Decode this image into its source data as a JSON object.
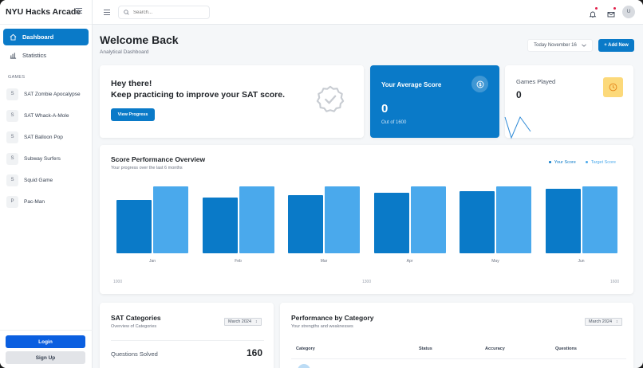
{
  "app": {
    "title": "NYU Hacks Arcade"
  },
  "sidebar": {
    "nav": [
      {
        "label": "Dashboard",
        "icon": "home-icon",
        "active": true
      },
      {
        "label": "Statistics",
        "icon": "bar-chart-icon",
        "active": false
      }
    ],
    "games_heading": "GAMES",
    "games": [
      {
        "initial": "S",
        "label": "SAT Zombie Apocalypse"
      },
      {
        "initial": "S",
        "label": "SAT Whack-A-Mole"
      },
      {
        "initial": "S",
        "label": "SAT Balloon Pop"
      },
      {
        "initial": "S",
        "label": "Subway Surfers"
      },
      {
        "initial": "S",
        "label": "Squid Game"
      },
      {
        "initial": "P",
        "label": "Pac-Man"
      }
    ],
    "login_label": "Login",
    "signup_label": "Sign Up"
  },
  "topbar": {
    "search_placeholder": "Search...",
    "avatar_initial": "U",
    "icons": [
      "bell-icon",
      "mail-icon"
    ]
  },
  "header": {
    "title": "Welcome Back",
    "subtitle": "Analytical Dashboard",
    "date_label": "Today November 16",
    "add_label": "+ Add New"
  },
  "hero": {
    "line1": "Hey there!",
    "line2": "Keep practicing to improve your SAT score.",
    "button": "View Progress"
  },
  "avg_score": {
    "title": "Your Average Score",
    "value": "0",
    "sub": "Out of 1600"
  },
  "games_played": {
    "title": "Games Played",
    "value": "0"
  },
  "performance": {
    "title": "Score Performance Overview",
    "subtitle": "Your progress over the last 6 months",
    "legend": [
      "Your Score",
      "Target Score"
    ],
    "months": [
      "Jan",
      "Feb",
      "Mar",
      "Apr",
      "May",
      "Jun"
    ],
    "axis": [
      "1000",
      "1300",
      "1600"
    ]
  },
  "chart_data": {
    "type": "bar",
    "title": "Score Performance Overview",
    "subtitle": "Your progress over the last 6 months",
    "categories": [
      "Jan",
      "Feb",
      "Mar",
      "Apr",
      "May",
      "Jun"
    ],
    "series": [
      {
        "name": "Your Score",
        "color": "#0a7ac8",
        "values": [
          1280,
          1330,
          1390,
          1450,
          1490,
          1540
        ]
      },
      {
        "name": "Target Score",
        "color": "#4aa9ec",
        "values": [
          1600,
          1600,
          1600,
          1600,
          1600,
          1600
        ]
      }
    ],
    "axis_tick_labels": [
      "1000",
      "1300",
      "1600"
    ],
    "legend_position": "top-right",
    "grid": false
  },
  "categories_card": {
    "title": "SAT Categories",
    "subtitle": "Overview of Categories",
    "select": "March 2024",
    "questions_label": "Questions Solved",
    "questions_value": "160"
  },
  "perf_category": {
    "title": "Performance by Category",
    "subtitle": "Your strengths and weaknesses",
    "select": "March 2024",
    "columns": [
      "Category",
      "Status",
      "Accuracy",
      "Questions"
    ]
  },
  "colors": {
    "primary": "#0a7ac8",
    "target": "#4aa9ec",
    "login": "#0b5fe0",
    "warning_tile": "#fcd97a"
  }
}
